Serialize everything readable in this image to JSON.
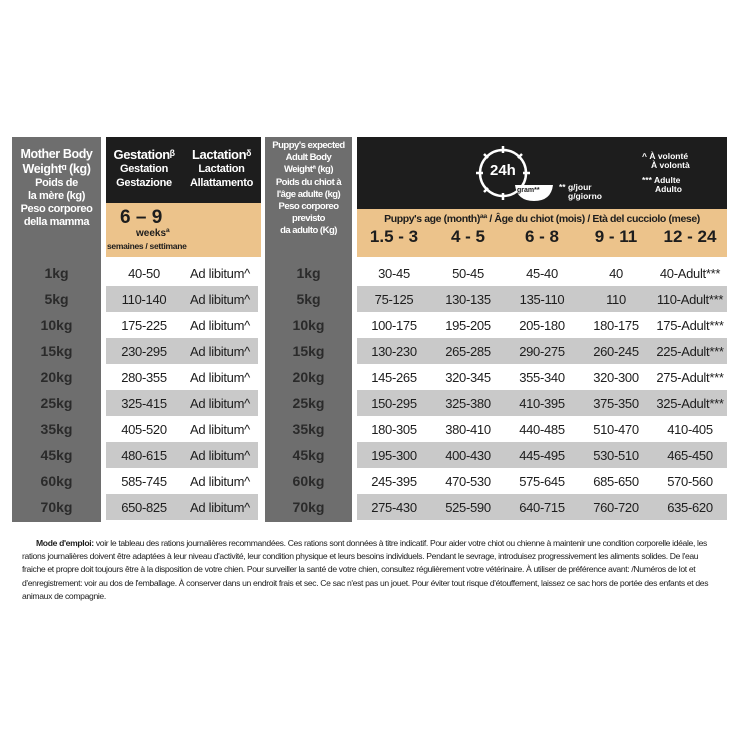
{
  "mother": {
    "title1": "Mother Body",
    "title2": "Weightᵅ (kg)",
    "fr1": "Poids de",
    "fr2": "la mère (kg)",
    "it1": "Peso corporeo",
    "it2": "della mamma"
  },
  "gestation": {
    "en": "Gestationᵝ",
    "fr": "Gestation",
    "it": "Gestazione",
    "weeks": "6 – 9",
    "weeks_label": "weeksª",
    "weeks_sub": "semaines / settimane"
  },
  "lactation": {
    "en": "Lactationᵟ",
    "fr": "Lactation",
    "it": "Allattamento"
  },
  "puppy_weight": {
    "l1": "Puppy's expected",
    "l2": "Adult Body",
    "l3": "Weightª (kg)",
    "l4": "Poids du chiot à",
    "l5": "l'âge adulte (kg)",
    "l6": "Peso corporeo previsto",
    "l7": "da adulto (Kg)"
  },
  "legend": {
    "clock_label": "24h",
    "bowl_label": "gram**",
    "gram_fr": "** g/jour",
    "gram_it": "g/giorno",
    "adlib_fr": "^  À volonté",
    "adlib_it": "À volontà",
    "adult_fr": "*** Adulte",
    "adult_it": "Adulto"
  },
  "age_header": "Puppy's age (month)ªª / Âge du chiot (mois) / Età del cucciolo (mese)",
  "ages": [
    "1.5 - 3",
    "4 - 5",
    "6 - 8",
    "9 - 11",
    "12 - 24"
  ],
  "rows": [
    {
      "w": "1kg",
      "g": "40-50",
      "l": "Ad libitum^",
      "p": [
        "30-45",
        "50-45",
        "45-40",
        "40",
        "40-Adult***"
      ]
    },
    {
      "w": "5kg",
      "g": "110-140",
      "l": "Ad libitum^",
      "p": [
        "75-125",
        "130-135",
        "135-110",
        "110",
        "110-Adult***"
      ]
    },
    {
      "w": "10kg",
      "g": "175-225",
      "l": "Ad libitum^",
      "p": [
        "100-175",
        "195-205",
        "205-180",
        "180-175",
        "175-Adult***"
      ]
    },
    {
      "w": "15kg",
      "g": "230-295",
      "l": "Ad libitum^",
      "p": [
        "130-230",
        "265-285",
        "290-275",
        "260-245",
        "225-Adult***"
      ]
    },
    {
      "w": "20kg",
      "g": "280-355",
      "l": "Ad libitum^",
      "p": [
        "145-265",
        "320-345",
        "355-340",
        "320-300",
        "275-Adult***"
      ]
    },
    {
      "w": "25kg",
      "g": "325-415",
      "l": "Ad libitum^",
      "p": [
        "150-295",
        "325-380",
        "410-395",
        "375-350",
        "325-Adult***"
      ]
    },
    {
      "w": "35kg",
      "g": "405-520",
      "l": "Ad libitum^",
      "p": [
        "180-305",
        "380-410",
        "440-485",
        "510-470",
        "410-405"
      ]
    },
    {
      "w": "45kg",
      "g": "480-615",
      "l": "Ad libitum^",
      "p": [
        "195-300",
        "400-430",
        "445-495",
        "530-510",
        "465-450"
      ]
    },
    {
      "w": "60kg",
      "g": "585-745",
      "l": "Ad libitum^",
      "p": [
        "245-395",
        "470-530",
        "575-645",
        "685-650",
        "570-560"
      ]
    },
    {
      "w": "70kg",
      "g": "650-825",
      "l": "Ad libitum^",
      "p": [
        "275-430",
        "525-590",
        "640-715",
        "760-720",
        "635-620"
      ]
    }
  ],
  "footer": {
    "lead": "Mode d'emploi:",
    "text": " voir le tableau des rations journalières recommandées. Ces rations sont données à titre indicatif. Pour aider votre chiot ou chienne à maintenir une condition corporelle idéale, les rations journalières doivent être adaptées à leur niveau d'activité, leur condition physique et leurs besoins individuels. Pendant le sevrage, introduisez progressivement les aliments solides. De l'eau fraiche et propre doit toujours être à la disposition de votre chien. Pour surveiller la santé de votre chien, consultez régulièrement votre vétérinaire. À utiliser de préférence avant: /Numéros de lot et d'enregistrement: voir au dos de l'emballage. À conserver dans un endroit frais et sec. Ce sac n'est pas un jouet. Pour éviter tout risque d'étouffement, laissez ce sac hors de portée des enfants et des animaux de compagnie."
  },
  "colors": {
    "gray": "#6e6e6e",
    "black": "#1d1d1d",
    "tan": "#ecc38b",
    "row_alt": "#c9c9c9"
  }
}
